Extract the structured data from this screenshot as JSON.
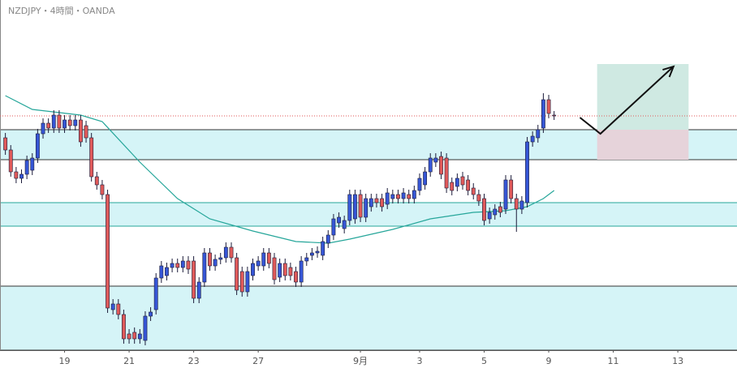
{
  "chart_data": {
    "type": "candlestick",
    "title": "NZDJPY・4時間・OANDA",
    "up_color": "#3656d6",
    "down_color": "#e05a5a",
    "wick_color": "#1c1c3a",
    "ylim": [
      86.0,
      90.32
    ],
    "xlim": [
      -1,
      136
    ],
    "xticks": [
      {
        "value": 11,
        "label": "19"
      },
      {
        "value": 23,
        "label": "21"
      },
      {
        "value": 35,
        "label": "23"
      },
      {
        "value": 47,
        "label": "27"
      },
      {
        "value": 66,
        "label": "9月"
      },
      {
        "value": 77,
        "label": "3"
      },
      {
        "value": 89,
        "label": "5"
      },
      {
        "value": 101,
        "label": "9"
      },
      {
        "value": 113,
        "label": "11"
      },
      {
        "value": 125,
        "label": "13"
      }
    ],
    "open": [
      88.62,
      88.47,
      88.2,
      88.12,
      88.17,
      88.22,
      88.37,
      88.67,
      88.8,
      88.74,
      88.9,
      88.74,
      88.84,
      88.77,
      88.84,
      88.77,
      88.62,
      88.14,
      88.04,
      87.92,
      86.5,
      86.57,
      86.44,
      86.2,
      86.22,
      86.14,
      86.12,
      86.42,
      86.5,
      86.89,
      86.92,
      87.02,
      87.07,
      87.02,
      87.1,
      87.1,
      86.64,
      86.84,
      87.2,
      87.04,
      87.12,
      87.14,
      87.27,
      87.14,
      86.97,
      86.72,
      86.92,
      87.04,
      87.04,
      87.2,
      87.14,
      86.9,
      87.07,
      87.02,
      86.97,
      86.84,
      87.1,
      87.17,
      87.2,
      87.17,
      87.32,
      87.42,
      87.57,
      87.5,
      87.6,
      87.62,
      87.92,
      87.64,
      87.77,
      87.87,
      87.87,
      87.8,
      87.87,
      87.92,
      87.87,
      87.92,
      87.87,
      87.97,
      88.04,
      88.2,
      88.32,
      88.39,
      88.37,
      88.07,
      88.02,
      88.14,
      88.1,
      88.0,
      87.92,
      87.87,
      87.62,
      87.67,
      87.77,
      87.74,
      88.1,
      87.87,
      87.74,
      87.82,
      88.57,
      88.62,
      88.74,
      89.09,
      88.9
    ],
    "high": [
      88.68,
      88.53,
      88.26,
      88.23,
      88.4,
      88.43,
      88.73,
      88.86,
      88.86,
      88.96,
      88.96,
      88.9,
      88.9,
      88.9,
      88.9,
      88.83,
      88.68,
      88.2,
      88.1,
      87.98,
      86.63,
      86.63,
      86.5,
      86.26,
      86.28,
      86.26,
      86.48,
      86.53,
      86.95,
      87.1,
      87.08,
      87.13,
      87.13,
      87.16,
      87.16,
      87.16,
      86.9,
      87.26,
      87.26,
      87.18,
      87.2,
      87.33,
      87.33,
      87.2,
      87.03,
      87.03,
      87.13,
      87.16,
      87.26,
      87.26,
      87.2,
      87.13,
      87.13,
      87.08,
      87.03,
      87.16,
      87.2,
      87.26,
      87.28,
      87.4,
      87.48,
      87.68,
      87.7,
      87.66,
      87.98,
      87.98,
      87.98,
      87.93,
      87.93,
      87.93,
      87.93,
      88.0,
      87.98,
      87.98,
      88.0,
      87.98,
      88.03,
      88.18,
      88.26,
      88.43,
      88.43,
      88.45,
      88.43,
      88.13,
      88.18,
      88.2,
      88.16,
      88.06,
      87.98,
      87.93,
      87.76,
      87.8,
      87.83,
      88.16,
      88.16,
      87.93,
      87.9,
      88.63,
      88.7,
      88.78,
      89.17,
      89.15,
      88.95
    ],
    "low": [
      88.41,
      88.14,
      88.06,
      88.06,
      88.11,
      88.16,
      88.31,
      88.61,
      88.68,
      88.68,
      88.68,
      88.68,
      88.71,
      88.71,
      88.51,
      88.56,
      88.08,
      87.98,
      87.86,
      86.46,
      86.44,
      86.38,
      86.08,
      86.08,
      86.08,
      86.08,
      86.06,
      86.36,
      86.44,
      86.83,
      86.86,
      86.96,
      86.96,
      86.96,
      86.94,
      86.58,
      86.58,
      86.78,
      86.98,
      86.98,
      87.06,
      87.08,
      87.08,
      86.68,
      86.66,
      86.66,
      86.86,
      86.98,
      86.98,
      87.01,
      86.81,
      86.84,
      86.86,
      86.86,
      86.78,
      86.78,
      87.04,
      87.11,
      87.14,
      87.11,
      87.26,
      87.36,
      87.51,
      87.44,
      87.54,
      87.56,
      87.58,
      87.58,
      87.71,
      87.76,
      87.71,
      87.74,
      87.81,
      87.81,
      87.81,
      87.81,
      87.81,
      87.91,
      87.98,
      88.14,
      88.26,
      88.11,
      87.94,
      87.91,
      87.96,
      87.98,
      87.91,
      87.86,
      87.78,
      87.54,
      87.56,
      87.61,
      87.64,
      87.68,
      87.81,
      87.46,
      87.68,
      87.76,
      88.51,
      88.56,
      88.68,
      88.86,
      88.84
    ],
    "close": [
      88.47,
      88.2,
      88.12,
      88.17,
      88.34,
      88.37,
      88.67,
      88.8,
      88.74,
      88.9,
      88.74,
      88.84,
      88.77,
      88.84,
      88.57,
      88.62,
      88.14,
      88.04,
      87.92,
      86.52,
      86.57,
      86.44,
      86.14,
      86.14,
      86.14,
      86.2,
      86.42,
      86.47,
      86.89,
      87.04,
      87.02,
      87.07,
      87.02,
      87.1,
      87.0,
      86.64,
      86.84,
      87.2,
      87.04,
      87.12,
      87.14,
      87.27,
      87.14,
      86.74,
      86.72,
      86.97,
      87.07,
      87.1,
      87.2,
      87.07,
      86.87,
      87.07,
      86.92,
      86.92,
      86.84,
      87.1,
      87.14,
      87.2,
      87.22,
      87.34,
      87.42,
      87.62,
      87.64,
      87.6,
      87.92,
      87.92,
      87.64,
      87.87,
      87.87,
      87.82,
      87.77,
      87.94,
      87.92,
      87.87,
      87.94,
      87.87,
      87.97,
      88.12,
      88.2,
      88.37,
      88.37,
      88.17,
      88.0,
      87.97,
      88.12,
      88.04,
      87.97,
      87.92,
      87.84,
      87.6,
      87.7,
      87.74,
      87.7,
      88.1,
      87.87,
      87.74,
      87.84,
      88.57,
      88.64,
      88.72,
      89.09,
      88.92,
      88.89
    ],
    "moving_average": {
      "color": "#26a69a",
      "x": [
        0,
        5,
        14,
        18,
        25,
        32,
        38,
        46,
        54,
        60,
        64,
        72,
        79,
        87,
        93,
        97,
        100,
        102
      ],
      "values": [
        89.14,
        88.97,
        88.9,
        88.82,
        88.32,
        87.87,
        87.62,
        87.47,
        87.34,
        87.32,
        87.37,
        87.49,
        87.62,
        87.7,
        87.72,
        87.77,
        87.87,
        87.97
      ]
    },
    "zone_fill": "#d5f4f7",
    "zones": [
      {
        "from": 88.35,
        "to": 88.72,
        "edge_color": "#333333"
      },
      {
        "from": 87.53,
        "to": 87.82,
        "edge_color": "#26a69a"
      },
      {
        "from": 86.0,
        "to": 86.79,
        "edge_color": "#333333"
      }
    ],
    "position": {
      "x_range": [
        110,
        127
      ],
      "entry": 88.72,
      "target": 89.53,
      "stop": 88.35,
      "target_color": "#cfe9e2",
      "stop_color": "#e6d3da"
    },
    "arrow": {
      "x": [
        106.8,
        110.6,
        124.2
      ],
      "values": [
        88.87,
        88.67,
        89.5
      ],
      "color": "#111111"
    }
  }
}
